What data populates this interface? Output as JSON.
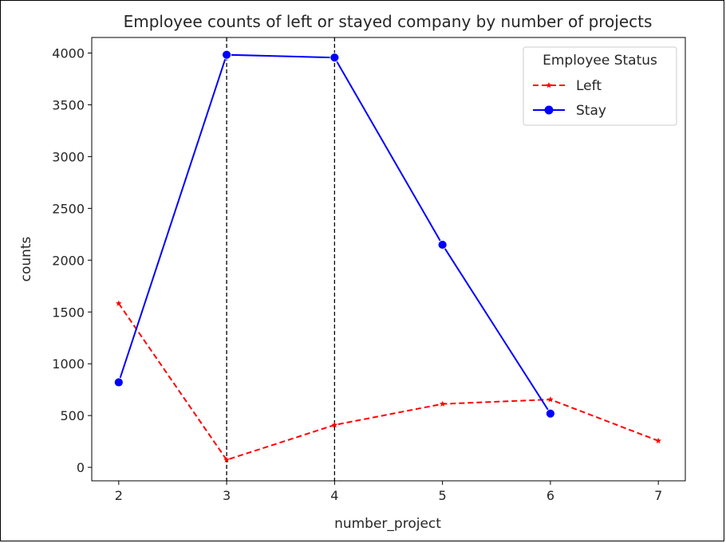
{
  "chart_data": {
    "type": "line",
    "title": "Employee counts of left or stayed company by number of projects",
    "xlabel": "number_project",
    "ylabel": "counts",
    "x": [
      2,
      3,
      4,
      5,
      6,
      7
    ],
    "xlim": [
      1.75,
      7.25
    ],
    "ylim": [
      -130,
      4150
    ],
    "yticks": [
      0,
      500,
      1000,
      1500,
      2000,
      2500,
      3000,
      3500,
      4000
    ],
    "xticks": [
      2,
      3,
      4,
      5,
      6,
      7
    ],
    "vlines": [
      3,
      4
    ],
    "legend_title": "Employee Status",
    "legend_position": "top-right",
    "series": [
      {
        "name": "Left",
        "color": "#ff0000",
        "style": "dashed",
        "marker": "star",
        "x": [
          2,
          3,
          4,
          5,
          6,
          7
        ],
        "values": [
          1582,
          72,
          409,
          612,
          655,
          256
        ]
      },
      {
        "name": "Stay",
        "color": "#0000ff",
        "style": "solid",
        "marker": "circle",
        "x": [
          2,
          3,
          4,
          5,
          6
        ],
        "values": [
          821,
          3983,
          3956,
          2149,
          519
        ]
      }
    ]
  }
}
